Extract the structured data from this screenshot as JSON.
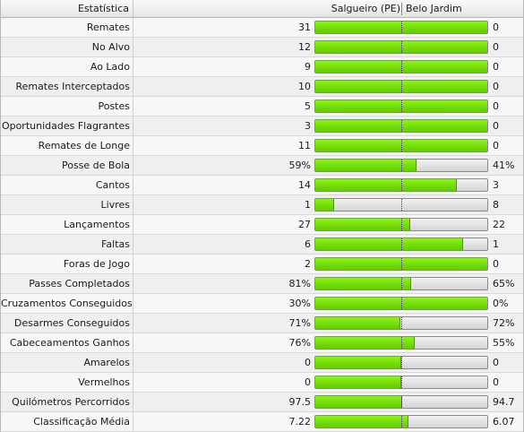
{
  "header": {
    "stat_label": "Estatística",
    "home_team": "Salgueiro (PE)",
    "away_team": "Belo Jardim"
  },
  "colors": {
    "bar_fill": "#74dd00",
    "bar_empty": "#e2e2e2"
  },
  "rows": [
    {
      "label": "Remates",
      "home": "31",
      "away": "0",
      "home_share": 1.0
    },
    {
      "label": "No Alvo",
      "home": "12",
      "away": "0",
      "home_share": 1.0
    },
    {
      "label": "Ao Lado",
      "home": "9",
      "away": "0",
      "home_share": 1.0
    },
    {
      "label": "Remates Interceptados",
      "home": "10",
      "away": "0",
      "home_share": 1.0
    },
    {
      "label": "Postes",
      "home": "5",
      "away": "0",
      "home_share": 1.0
    },
    {
      "label": "Oportunidades Flagrantes",
      "home": "3",
      "away": "0",
      "home_share": 1.0
    },
    {
      "label": "Remates de Longe",
      "home": "11",
      "away": "0",
      "home_share": 1.0
    },
    {
      "label": "Posse de Bola",
      "home": "59%",
      "away": "41%",
      "home_share": 0.59
    },
    {
      "label": "Cantos",
      "home": "14",
      "away": "3",
      "home_share": 0.824
    },
    {
      "label": "Livres",
      "home": "1",
      "away": "8",
      "home_share": 0.111
    },
    {
      "label": "Lançamentos",
      "home": "27",
      "away": "22",
      "home_share": 0.551
    },
    {
      "label": "Faltas",
      "home": "6",
      "away": "1",
      "home_share": 0.857
    },
    {
      "label": "Foras de Jogo",
      "home": "2",
      "away": "0",
      "home_share": 1.0
    },
    {
      "label": "Passes Completados",
      "home": "81%",
      "away": "65%",
      "home_share": 0.555
    },
    {
      "label": "Cruzamentos Conseguidos",
      "home": "30%",
      "away": "0%",
      "home_share": 1.0
    },
    {
      "label": "Desarmes Conseguidos",
      "home": "71%",
      "away": "72%",
      "home_share": 0.496
    },
    {
      "label": "Cabeceamentos Ganhos",
      "home": "76%",
      "away": "55%",
      "home_share": 0.58
    },
    {
      "label": "Amarelos",
      "home": "0",
      "away": "0",
      "home_share": 0.5
    },
    {
      "label": "Vermelhos",
      "home": "0",
      "away": "0",
      "home_share": 0.5
    },
    {
      "label": "Quilómetros Percorridos",
      "home": "97.5",
      "away": "94.7",
      "home_share": 0.507
    },
    {
      "label": "Classificação Média",
      "home": "7.22",
      "away": "6.07",
      "home_share": 0.543
    }
  ]
}
